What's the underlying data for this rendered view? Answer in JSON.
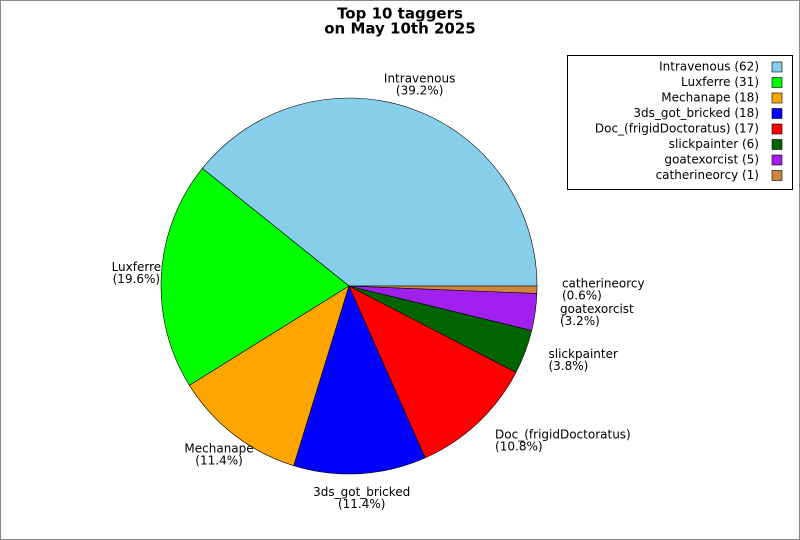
{
  "chart_data": {
    "type": "pie",
    "title_lines": [
      "Top 10 taggers",
      "on May 10th 2025"
    ],
    "categories": [
      "Intravenous",
      "Luxferre",
      "Mechanape",
      "3ds_got_bricked",
      "Doc_(frigidDoctoratus)",
      "slickpainter",
      "goatexorcist",
      "catherineorcy"
    ],
    "values": [
      62,
      31,
      18,
      18,
      17,
      6,
      5,
      1
    ],
    "percent_labels": [
      "(39.2%)",
      "(19.6%)",
      "(11.4%)",
      "(11.4%)",
      "(10.8%)",
      "(3.8%)",
      "(3.2%)",
      "(0.6%)"
    ],
    "legend_labels": [
      "Intravenous (62)",
      "Luxferre (31)",
      "Mechanape (18)",
      "3ds_got_bricked (18)",
      "Doc_(frigidDoctoratus) (17)",
      "slickpainter (6)",
      "goatexorcist (5)",
      "catherineorcy (1)"
    ],
    "colors": [
      "#87ceeb",
      "#00ff00",
      "#ffa500",
      "#0000ff",
      "#ff0000",
      "#006400",
      "#a020f0",
      "#cd853f"
    ],
    "legend": "upper right"
  }
}
